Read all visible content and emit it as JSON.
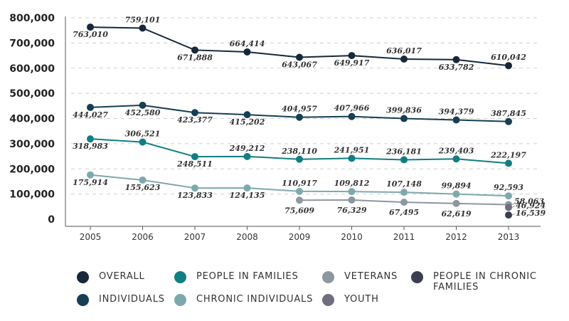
{
  "chart_data": {
    "type": "line",
    "categories": [
      "2005",
      "2006",
      "2007",
      "2008",
      "2009",
      "2010",
      "2011",
      "2012",
      "2013"
    ],
    "ylim": [
      0,
      800000
    ],
    "yticks": [
      "800,000",
      "700,000",
      "600,000",
      "500,000",
      "400,000",
      "300,000",
      "200,000",
      "100,000",
      "0"
    ],
    "ytick_values": [
      800000,
      700000,
      600000,
      500000,
      400000,
      300000,
      200000,
      100000,
      0
    ],
    "grid": true,
    "legend_position": "bottom",
    "series": [
      {
        "name": "OVERALL",
        "color": "#16283a",
        "values": [
          763010,
          759101,
          671888,
          664414,
          643067,
          649917,
          636017,
          633782,
          610042
        ],
        "labels": [
          "763,010",
          "759,101",
          "671,888",
          "664,414",
          "643,067",
          "649,917",
          "636,017",
          "633,782",
          "610,042"
        ]
      },
      {
        "name": "INDIVIDUALS",
        "color": "#163f55",
        "values": [
          444027,
          452580,
          423377,
          415202,
          404957,
          407966,
          399836,
          394379,
          387845
        ],
        "labels": [
          "444,027",
          "452,580",
          "423,377",
          "415,202",
          "404,957",
          "407,966",
          "399,836",
          "394,379",
          "387,845"
        ]
      },
      {
        "name": "PEOPLE IN FAMILIES",
        "color": "#117e82",
        "values": [
          318983,
          306521,
          248511,
          249212,
          238110,
          241951,
          236181,
          239403,
          222197
        ],
        "labels": [
          "318,983",
          "306,521",
          "248,511",
          "249,212",
          "238,110",
          "241,951",
          "236,181",
          "239,403",
          "222,197"
        ]
      },
      {
        "name": "CHRONIC INDIVIDUALS",
        "color": "#7da9ad",
        "values": [
          175914,
          155623,
          123833,
          124135,
          110917,
          109812,
          107148,
          99894,
          92593
        ],
        "labels": [
          "175,914",
          "155,623",
          "123,833",
          "124,135",
          "110,917",
          "109,812",
          "107,148",
          "99,894",
          "92,593"
        ]
      },
      {
        "name": "VETERANS",
        "color": "#8d979f",
        "values": [
          null,
          null,
          null,
          null,
          75609,
          76329,
          67495,
          62619,
          58063
        ],
        "labels": [
          null,
          null,
          null,
          null,
          "75,609",
          "76,329",
          "67,495",
          "62,619",
          "58,063"
        ]
      },
      {
        "name": "YOUTH",
        "color": "#6e6e7e",
        "values": [
          null,
          null,
          null,
          null,
          null,
          null,
          null,
          null,
          46924
        ],
        "labels": [
          null,
          null,
          null,
          null,
          null,
          null,
          null,
          null,
          "46,924"
        ]
      },
      {
        "name": "PEOPLE IN CHRONIC FAMILIES",
        "color": "#3c3f4e",
        "values": [
          null,
          null,
          null,
          null,
          null,
          null,
          null,
          null,
          16539
        ],
        "labels": [
          null,
          null,
          null,
          null,
          null,
          null,
          null,
          null,
          "16,539"
        ]
      }
    ]
  },
  "legend": [
    {
      "label": "OVERALL",
      "color": "#16283a"
    },
    {
      "label": "PEOPLE IN FAMILIES",
      "color": "#117e82"
    },
    {
      "label": "VETERANS",
      "color": "#8d979f"
    },
    {
      "label": "PEOPLE IN CHRONIC FAMILIES",
      "color": "#3c3f4e"
    },
    {
      "label": "INDIVIDUALS",
      "color": "#163f55"
    },
    {
      "label": "CHRONIC INDIVIDUALS",
      "color": "#7da9ad"
    },
    {
      "label": "YOUTH",
      "color": "#6e6e7e"
    }
  ]
}
